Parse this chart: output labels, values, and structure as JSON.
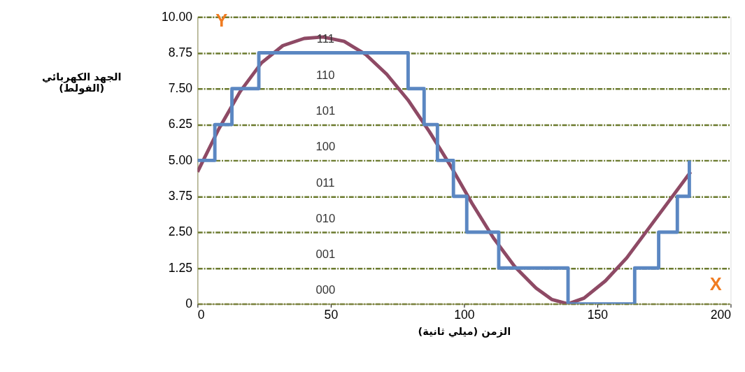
{
  "chart_data": {
    "type": "line",
    "xlabel": "الزمن (ميلي ثانية)",
    "ylabel": "الجهد الكهربائي\n(الفولط)",
    "xlim": [
      0,
      200
    ],
    "xticks": [
      0,
      50,
      100,
      150,
      200
    ],
    "ylim": [
      0,
      10
    ],
    "yticks": [
      0,
      1.25,
      {
        "value": 2.5,
        "label": "2.50"
      },
      3.75,
      {
        "value": 5,
        "label": "5.00"
      },
      6.25,
      {
        "value": 7.5,
        "label": "7.50"
      },
      8.75,
      {
        "value": 10,
        "label": "10.00"
      }
    ],
    "grid": "y",
    "line_style": "solid",
    "marker": "none",
    "series": [
      {
        "type": "line",
        "color": "#8e4a65",
        "x": [
          0,
          8,
          16,
          24,
          32,
          40,
          47,
          55,
          63,
          71,
          79,
          87,
          95,
          103,
          111,
          119,
          127,
          133,
          139,
          145,
          153,
          161,
          169,
          177,
          185
        ],
        "values": [
          4.6,
          6.1,
          7.4,
          8.4,
          9.0,
          9.25,
          9.3,
          9.15,
          8.7,
          8.0,
          7.1,
          6.0,
          4.8,
          3.5,
          2.3,
          1.3,
          0.55,
          0.15,
          0.0,
          0.2,
          0.8,
          1.6,
          2.6,
          3.6,
          4.6
        ]
      },
      {
        "type": "step",
        "color": "#5b87c2",
        "x": [
          0,
          6.5,
          12.9,
          23,
          79,
          85,
          90,
          96,
          101,
          113,
          139,
          164,
          173,
          180,
          184.5
        ],
        "values": [
          5,
          6.25,
          7.5,
          8.75,
          7.5,
          6.25,
          5,
          3.75,
          2.5,
          1.25,
          0,
          1.25,
          2.5,
          3.75,
          5
        ]
      }
    ],
    "annotations": [
      "000",
      "001",
      "010",
      "011",
      "100",
      "101",
      "110",
      "111",
      "Y",
      "X"
    ]
  }
}
